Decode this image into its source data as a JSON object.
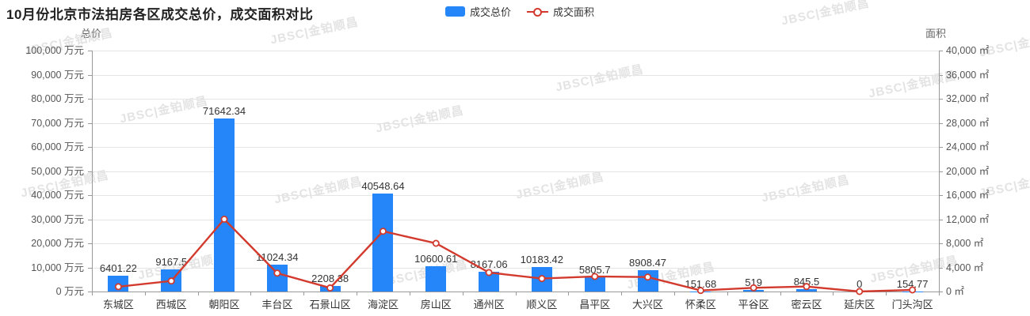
{
  "watermark": {
    "text": "JBSC|金铂顺昌"
  },
  "chart_data": {
    "type": "bar",
    "title": "10月份北京市法拍房各区成交总价，成交面积对比",
    "legend_position": "top-center",
    "grid": true,
    "categories": [
      "东城区",
      "西城区",
      "朝阳区",
      "丰台区",
      "石景山区",
      "海淀区",
      "房山区",
      "通州区",
      "顺义区",
      "昌平区",
      "大兴区",
      "怀柔区",
      "平谷区",
      "密云区",
      "延庆区",
      "门头沟区"
    ],
    "series": [
      {
        "name": "成交总价",
        "type": "bar",
        "unit": "万元",
        "axis": "left",
        "color": "#2486f8",
        "values": [
          6401.22,
          9167.5,
          71642.34,
          11024.34,
          2208.38,
          40548.64,
          10600.61,
          8167.06,
          10183.42,
          5805.7,
          8908.47,
          151.68,
          519,
          845.5,
          0,
          154.77
        ],
        "data_labels": [
          "6401.22",
          "9167.5",
          "71642.34",
          "11024.34",
          "2208.38",
          "40548.64",
          "10600.61",
          "8167.06",
          "10183.42",
          "5805.7",
          "8908.47",
          "151.68",
          "519",
          "845.5",
          "0",
          "154.77"
        ]
      },
      {
        "name": "成交面积",
        "type": "line",
        "unit": "㎡",
        "axis": "right",
        "color": "#d23a2e",
        "values_estimated_from_pixels": true,
        "values": [
          800,
          1750,
          12000,
          3050,
          600,
          10000,
          8000,
          3150,
          2150,
          2500,
          2400,
          170,
          620,
          830,
          0,
          270
        ]
      }
    ],
    "left_axis": {
      "name": "总价",
      "min": 0,
      "max": 100000,
      "step": 10000,
      "unit": "万元",
      "ticks": [
        "0 万元",
        "10,000 万元",
        "20,000 万元",
        "30,000 万元",
        "40,000 万元",
        "50,000 万元",
        "60,000 万元",
        "70,000 万元",
        "80,000 万元",
        "90,000 万元",
        "100,000 万元"
      ]
    },
    "right_axis": {
      "name": "面积",
      "min": 0,
      "max": 40000,
      "step": 4000,
      "unit": "㎡",
      "ticks": [
        "0 ㎡",
        "4,000 ㎡",
        "8,000 ㎡",
        "12,000 ㎡",
        "16,000 ㎡",
        "20,000 ㎡",
        "24,000 ㎡",
        "28,000 ㎡",
        "32,000 ㎡",
        "36,000 ㎡",
        "40,000 ㎡"
      ]
    },
    "ylim": [
      0,
      100000
    ],
    "y2lim": [
      0,
      40000
    ],
    "colors": {
      "bar": "#2486f8",
      "line": "#d23a2e",
      "grid": "#e4e4e4",
      "axis": "#999999"
    }
  }
}
